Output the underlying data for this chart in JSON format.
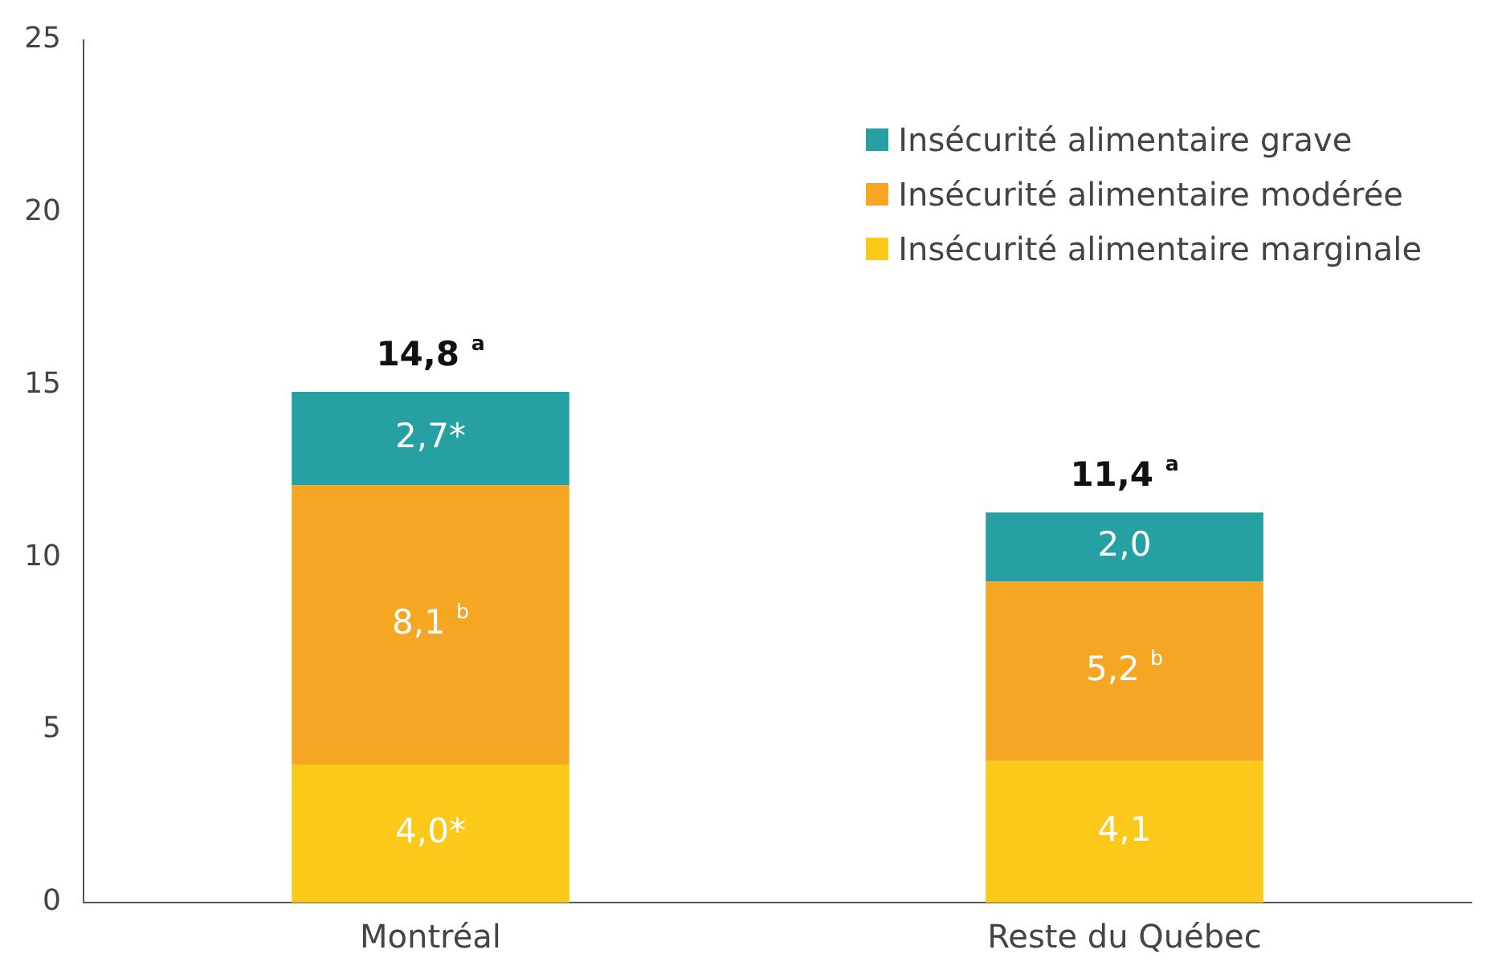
{
  "chart_data": {
    "type": "bar",
    "stacked": true,
    "categories": [
      "Montréal",
      "Reste du Québec"
    ],
    "series": [
      {
        "name": "Insécurité alimentaire marginale",
        "color": "#fcc81a",
        "values": [
          4.0,
          4.1
        ],
        "value_labels": [
          "4,0*",
          "4,1"
        ]
      },
      {
        "name": "Insécurité alimentaire modérée",
        "color": "#f5a623",
        "values": [
          8.1,
          5.2
        ],
        "value_labels": [
          "8,1 $^{b}$",
          "5,2 $^{b}$"
        ]
      },
      {
        "name": "Insécurité alimentaire grave",
        "color": "#26a0a3",
        "values": [
          2.7,
          2.0
        ],
        "value_labels": [
          "2,7*",
          "2,0"
        ]
      }
    ],
    "totals": [
      "14,8 $^{a}$",
      "11,4 $^{a}$"
    ],
    "ylim": [
      0,
      25
    ],
    "yticks": [
      0,
      5,
      10,
      15,
      20,
      25
    ],
    "grid": false,
    "legend": "top right"
  }
}
